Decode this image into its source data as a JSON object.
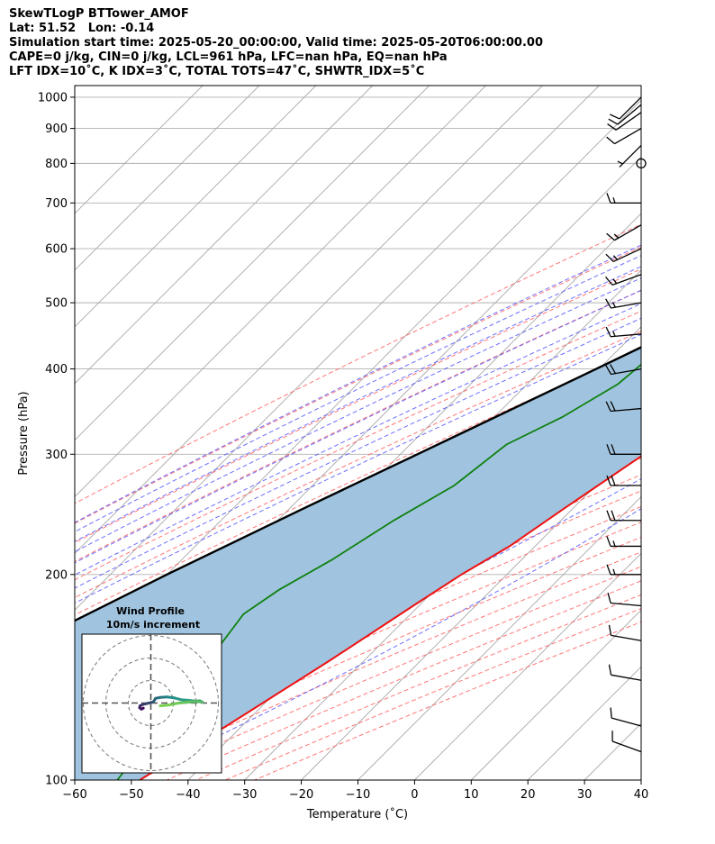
{
  "header": {
    "station": "SkewTLogP BTTower_AMOF",
    "location": "Lat: 51.52   Lon: -0.14",
    "times": "Simulation start time: 2025-05-20_00:00:00, Valid time: 2025-05-20T06:00:00.00",
    "indices": "CAPE=0 j/kg, CIN=0 j/kg, LCL=961 hPa, LFC=nan hPa, EQ=nan hPa",
    "stability": "LFT IDX=10˚C, K IDX=3˚C, TOTAL TOTS=47˚C, SHWTR_IDX=5˚C"
  },
  "colors": {
    "temperature": "#ee1111",
    "dewpoint": "#108010",
    "parcel": "#000000",
    "cape_fill": "#a0c4df",
    "dry_adiabat": "#ff5555",
    "moist_adiabat": "#4a4aff",
    "mixing_ratio": "#9040c0",
    "isotherm": "#a8a8a8",
    "isobar": "#b0b0b0"
  },
  "chart_data": {
    "type": "line",
    "subtype": "skew-T log-P diagram",
    "xlabel": "Temperature (˚C)",
    "ylabel": "Pressure (hPa)",
    "xlim": [
      -60,
      40
    ],
    "ylim": [
      1040,
      100
    ],
    "y_scale": "log",
    "xticks": [
      "−60",
      "−50",
      "−40",
      "−30",
      "−20",
      "−10",
      "0",
      "10",
      "20",
      "30",
      "40"
    ],
    "yticks": [
      "1000",
      "900",
      "800",
      "700",
      "600",
      "500",
      "400",
      "300",
      "200",
      "100"
    ],
    "grid": true,
    "series": [
      {
        "role": "temperature",
        "points": [
          {
            "p": 1000,
            "t": 9.5
          },
          {
            "p": 990,
            "t": 11.5
          },
          {
            "p": 975,
            "t": 12.8
          },
          {
            "p": 950,
            "t": 12.5
          },
          {
            "p": 900,
            "t": 10.8
          },
          {
            "p": 850,
            "t": 8.8
          },
          {
            "p": 800,
            "t": 7.8
          },
          {
            "p": 750,
            "t": 7.2
          },
          {
            "p": 700,
            "t": 7.0
          },
          {
            "p": 650,
            "t": 5.5
          },
          {
            "p": 600,
            "t": 3.5
          },
          {
            "p": 550,
            "t": 1.8
          },
          {
            "p": 500,
            "t": -2.5
          },
          {
            "p": 450,
            "t": -6.5
          },
          {
            "p": 400,
            "t": -9.5
          },
          {
            "p": 350,
            "t": -13.0
          },
          {
            "p": 300,
            "t": -17.0
          },
          {
            "p": 250,
            "t": -21.5
          },
          {
            "p": 220,
            "t": -24.5
          },
          {
            "p": 200,
            "t": -28.0
          },
          {
            "p": 180,
            "t": -31.0
          },
          {
            "p": 150,
            "t": -36.0
          },
          {
            "p": 125,
            "t": -41.5
          },
          {
            "p": 110,
            "t": -45.5
          },
          {
            "p": 100,
            "t": -48.5
          }
        ]
      },
      {
        "role": "dewpoint",
        "points": [
          {
            "p": 1005,
            "t": 5.5
          },
          {
            "p": 990,
            "t": 6.0
          },
          {
            "p": 975,
            "t": 5.8
          },
          {
            "p": 955,
            "t": 4.8
          },
          {
            "p": 935,
            "t": 5.2
          },
          {
            "p": 900,
            "t": 4.0
          },
          {
            "p": 870,
            "t": 3.3
          },
          {
            "p": 840,
            "t": 2.5
          },
          {
            "p": 820,
            "t": 0.5
          },
          {
            "p": 800,
            "t": -6.0
          },
          {
            "p": 750,
            "t": -14.0
          },
          {
            "p": 700,
            "t": -21.0
          },
          {
            "p": 650,
            "t": -24.5
          },
          {
            "p": 600,
            "t": -29.0
          },
          {
            "p": 550,
            "t": -29.5
          },
          {
            "p": 500,
            "t": -25.0
          },
          {
            "p": 470,
            "t": -30.0
          },
          {
            "p": 420,
            "t": -33.0
          },
          {
            "p": 380,
            "t": -34.0
          },
          {
            "p": 340,
            "t": -38.0
          },
          {
            "p": 310,
            "t": -43.0
          },
          {
            "p": 270,
            "t": -45.0
          },
          {
            "p": 240,
            "t": -49.5
          },
          {
            "p": 210,
            "t": -53.5
          },
          {
            "p": 190,
            "t": -57.5
          },
          {
            "p": 175,
            "t": -59.5
          },
          {
            "p": 150,
            "t": -57.5
          },
          {
            "p": 130,
            "t": -55.5
          },
          {
            "p": 115,
            "t": -54.0
          },
          {
            "p": 100,
            "t": -52.5
          }
        ]
      },
      {
        "role": "parcel",
        "points": [
          {
            "p": 1000,
            "t": 9.5
          },
          {
            "p": 961,
            "t": 6.0
          },
          {
            "p": 900,
            "t": 2.5
          },
          {
            "p": 850,
            "t": -0.5
          },
          {
            "p": 800,
            "t": -3.5
          },
          {
            "p": 700,
            "t": -10.5
          },
          {
            "p": 600,
            "t": -18.0
          },
          {
            "p": 500,
            "t": -28.0
          },
          {
            "p": 400,
            "t": -40.5
          },
          {
            "p": 300,
            "t": -57.0
          },
          {
            "p": 250,
            "t": -67.5
          },
          {
            "p": 200,
            "t": -80.0
          },
          {
            "p": 150,
            "t": -95.0
          },
          {
            "p": 100,
            "t": -117.0
          }
        ]
      }
    ],
    "wind_barbs": [
      {
        "p": 1000,
        "dir": 225,
        "kt": 12
      },
      {
        "p": 975,
        "dir": 230,
        "kt": 14
      },
      {
        "p": 950,
        "dir": 235,
        "kt": 14
      },
      {
        "p": 900,
        "dir": 240,
        "kt": 11
      },
      {
        "p": 850,
        "dir": 225,
        "kt": 6
      },
      {
        "p": 800,
        "dir": 0,
        "kt": 0
      },
      {
        "p": 700,
        "dir": 270,
        "kt": 15
      },
      {
        "p": 650,
        "dir": 240,
        "kt": 15
      },
      {
        "p": 600,
        "dir": 245,
        "kt": 15
      },
      {
        "p": 550,
        "dir": 250,
        "kt": 15
      },
      {
        "p": 500,
        "dir": 260,
        "kt": 15
      },
      {
        "p": 450,
        "dir": 265,
        "kt": 15
      },
      {
        "p": 400,
        "dir": 260,
        "kt": 20
      },
      {
        "p": 350,
        "dir": 265,
        "kt": 20
      },
      {
        "p": 300,
        "dir": 270,
        "kt": 20
      },
      {
        "p": 270,
        "dir": 270,
        "kt": 20
      },
      {
        "p": 240,
        "dir": 270,
        "kt": 20
      },
      {
        "p": 220,
        "dir": 270,
        "kt": 15
      },
      {
        "p": 200,
        "dir": 270,
        "kt": 15
      },
      {
        "p": 180,
        "dir": 275,
        "kt": 10
      },
      {
        "p": 160,
        "dir": 280,
        "kt": 10
      },
      {
        "p": 140,
        "dir": 280,
        "kt": 10
      },
      {
        "p": 120,
        "dir": 285,
        "kt": 10
      },
      {
        "p": 110,
        "dir": 290,
        "kt": 10
      }
    ],
    "inset": {
      "title": "Wind Profile",
      "subtitle": "10m/s increment",
      "type": "hodograph",
      "rings": 3,
      "points": [
        [
          -1.6,
          -1.1
        ],
        [
          -2.0,
          -1.3
        ],
        [
          -2.4,
          -1.0
        ],
        [
          -2.3,
          -0.6
        ],
        [
          -1.7,
          -0.3
        ],
        [
          -0.4,
          0.0
        ],
        [
          0.6,
          0.3
        ],
        [
          1.0,
          1.0
        ],
        [
          2.0,
          1.2
        ],
        [
          3.5,
          1.3
        ],
        [
          5.0,
          1.1
        ],
        [
          6.5,
          0.7
        ],
        [
          8.0,
          0.6
        ],
        [
          9.5,
          0.4
        ],
        [
          10.5,
          0.5
        ],
        [
          11.0,
          0.2
        ],
        [
          10.0,
          0.3
        ],
        [
          8.0,
          0.2
        ],
        [
          6.0,
          0.0
        ],
        [
          4.0,
          -0.4
        ],
        [
          2.0,
          -0.6
        ]
      ]
    }
  }
}
